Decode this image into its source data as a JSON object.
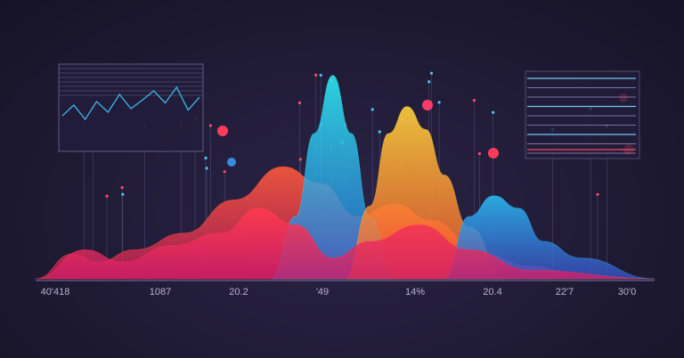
{
  "chart_data": {
    "type": "area",
    "title": "",
    "xlabel": "",
    "ylabel": "",
    "tick_labels": [
      "40'418",
      "1087",
      "20.2",
      "'49",
      "14%",
      "20.4",
      "22'7",
      "30'0"
    ],
    "xlim": [
      0,
      100
    ],
    "ylim": [
      0,
      100
    ],
    "grid": false,
    "legend": "none",
    "series": [
      {
        "color_top": "#ff5a3c",
        "color_bottom": "#c81e5a",
        "x": [
          0,
          6,
          10,
          16,
          24,
          32,
          40,
          46,
          52,
          58,
          64,
          72,
          80,
          88,
          100
        ],
        "y": [
          0,
          12,
          8,
          14,
          22,
          38,
          54,
          46,
          30,
          36,
          28,
          12,
          6,
          2,
          0
        ]
      },
      {
        "color_top": "#2ee6f0",
        "color_bottom": "#2a6fd6",
        "x": [
          38,
          42,
          45,
          48,
          51,
          54,
          58
        ],
        "y": [
          0,
          30,
          70,
          98,
          70,
          30,
          0
        ]
      },
      {
        "color_top": "#ffd23c",
        "color_bottom": "#ff5a2a",
        "x": [
          50,
          54,
          57,
          60,
          63,
          66,
          70,
          76
        ],
        "y": [
          0,
          35,
          70,
          83,
          72,
          50,
          25,
          0
        ]
      },
      {
        "color_top": "#2ab8f0",
        "color_bottom": "#3a50c8",
        "x": [
          66,
          70,
          74,
          78,
          82,
          88,
          100
        ],
        "y": [
          0,
          30,
          40,
          34,
          18,
          10,
          0
        ]
      },
      {
        "color_top": "#ff3b4e",
        "color_bottom": "#d01e6a",
        "x": [
          0,
          8,
          14,
          22,
          30,
          36,
          42,
          48,
          54,
          62,
          70,
          80,
          100
        ],
        "y": [
          0,
          14,
          8,
          16,
          22,
          34,
          26,
          10,
          18,
          26,
          14,
          4,
          0
        ]
      }
    ],
    "inset_left": {
      "type": "line",
      "color": "#3ab8e8",
      "values": [
        40,
        55,
        35,
        60,
        45,
        70,
        50,
        62,
        75,
        58,
        80,
        48,
        66
      ]
    },
    "inset_right": {
      "type": "line",
      "color": "#6fc8f0",
      "lines": 9,
      "accent": "#ff4a6a"
    }
  }
}
